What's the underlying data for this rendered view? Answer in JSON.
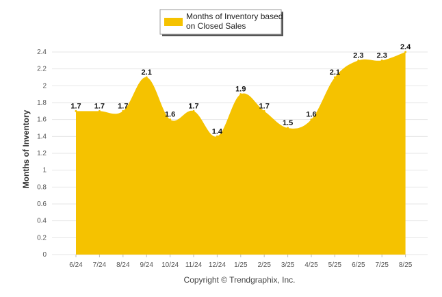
{
  "chart_data": {
    "type": "area",
    "categories": [
      "6/24",
      "7/24",
      "8/24",
      "9/24",
      "10/24",
      "11/24",
      "12/24",
      "1/25",
      "2/25",
      "3/25",
      "4/25",
      "5/25",
      "6/25",
      "7/25",
      "8/25"
    ],
    "series": [
      {
        "name": "Months of Inventory based on Closed Sales",
        "values": [
          1.7,
          1.7,
          1.7,
          2.1,
          1.6,
          1.7,
          1.4,
          1.9,
          1.7,
          1.5,
          1.6,
          2.1,
          2.3,
          2.3,
          2.4
        ]
      }
    ],
    "data_labels": [
      "1.7",
      "1.7",
      "1.7",
      "2.1",
      "1.6",
      "1.7",
      "1.4",
      "1.9",
      "1.7",
      "1.5",
      "1.6",
      "2.1",
      "2.3",
      "2.3",
      "2.4"
    ],
    "ylabel": "Months of Inventory",
    "xlabel": "",
    "ylim": [
      0,
      2.4
    ],
    "yticks": [
      "0",
      "0.2",
      "0.4",
      "0.6",
      "0.8",
      "1",
      "1.2",
      "1.4",
      "1.6",
      "1.8",
      "2",
      "2.2",
      "2.4"
    ],
    "grid": true,
    "legend_position": "top-center",
    "colors": {
      "area": "#f5c200",
      "grid": "#e6e6e6"
    }
  },
  "legend": {
    "line1": "Months of Inventory based",
    "line2": "on Closed Sales"
  },
  "footer": {
    "copyright": "Copyright © Trendgraphix, Inc."
  }
}
